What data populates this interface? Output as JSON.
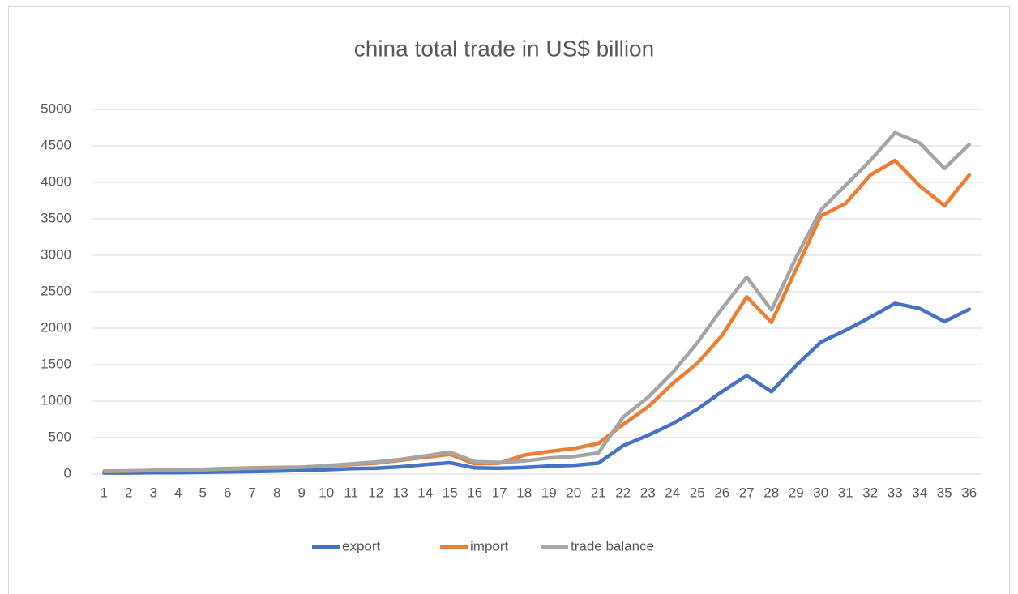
{
  "chart_data": {
    "type": "line",
    "title": "china total trade in US$ billion",
    "categories": [
      "1",
      "2",
      "3",
      "4",
      "5",
      "6",
      "7",
      "8",
      "9",
      "10",
      "11",
      "12",
      "13",
      "14",
      "15",
      "16",
      "17",
      "18",
      "19",
      "20",
      "21",
      "22",
      "23",
      "24",
      "25",
      "26",
      "27",
      "28",
      "29",
      "30",
      "31",
      "32",
      "33",
      "34",
      "35",
      "36"
    ],
    "series": [
      {
        "name": "export",
        "color": "#4472c4",
        "values": [
          15,
          15,
          20,
          20,
          25,
          30,
          35,
          40,
          50,
          60,
          75,
          80,
          100,
          130,
          155,
          85,
          80,
          90,
          110,
          120,
          150,
          390,
          530,
          690,
          890,
          1130,
          1350,
          1130,
          1490,
          1810,
          1970,
          2150,
          2340,
          2270,
          2090,
          2260
        ]
      },
      {
        "name": "import",
        "color": "#ed7d31",
        "values": [
          35,
          40,
          50,
          60,
          65,
          75,
          85,
          90,
          95,
          110,
          130,
          150,
          190,
          230,
          270,
          140,
          150,
          260,
          310,
          350,
          420,
          680,
          920,
          1240,
          1520,
          1900,
          2430,
          2080,
          2810,
          3540,
          3710,
          4100,
          4300,
          3950,
          3680,
          4100
        ]
      },
      {
        "name": "trade balance",
        "color": "#a5a5a5",
        "values": [
          40,
          45,
          50,
          55,
          60,
          70,
          80,
          85,
          95,
          115,
          140,
          165,
          200,
          250,
          300,
          170,
          160,
          180,
          220,
          240,
          290,
          780,
          1050,
          1390,
          1800,
          2270,
          2700,
          2250,
          2970,
          3620,
          3960,
          4300,
          4680,
          4540,
          4190,
          4520
        ]
      }
    ],
    "ylim": [
      0,
      5000
    ],
    "yticks": [
      0,
      500,
      1000,
      1500,
      2000,
      2500,
      3000,
      3500,
      4000,
      4500,
      5000
    ],
    "grid": true,
    "legend": "bottom"
  }
}
